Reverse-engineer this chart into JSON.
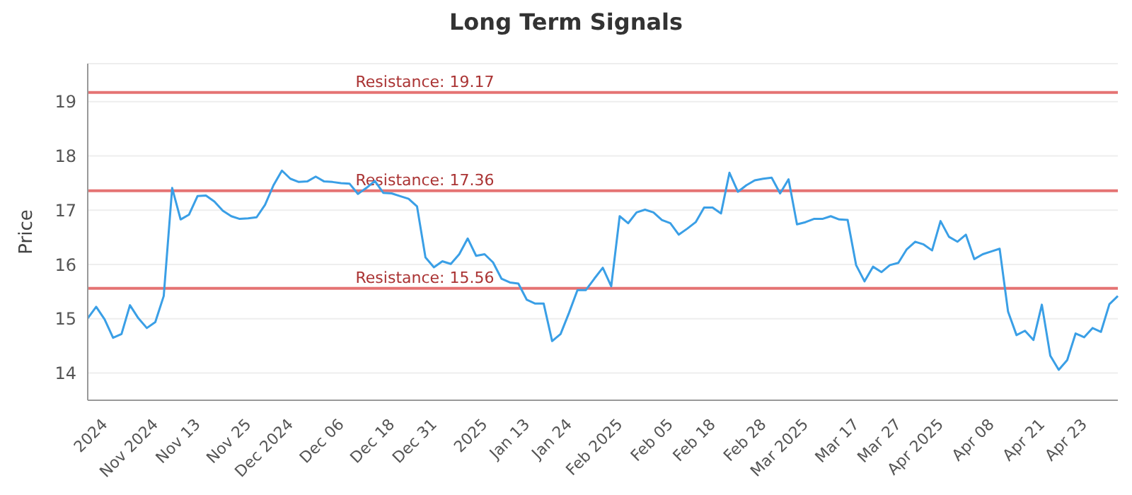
{
  "chart_data": {
    "type": "line",
    "title": "Long Term Signals",
    "ylabel": "Price",
    "categories": [
      null,
      null,
      "2024",
      null,
      null,
      null,
      null,
      null,
      "Nov 2024",
      null,
      null,
      null,
      null,
      "Nov 13",
      null,
      null,
      null,
      null,
      null,
      "Nov 25",
      null,
      null,
      null,
      null,
      "Dec 2024",
      null,
      null,
      null,
      null,
      null,
      "Dec 06",
      null,
      null,
      null,
      null,
      null,
      "Dec 18",
      null,
      null,
      null,
      null,
      "Dec 31",
      null,
      null,
      null,
      null,
      null,
      "2025",
      null,
      null,
      null,
      null,
      "Jan 13",
      null,
      null,
      null,
      null,
      "Jan 24",
      null,
      null,
      null,
      null,
      null,
      "Feb 2025",
      null,
      null,
      null,
      null,
      null,
      "Feb 05",
      null,
      null,
      null,
      null,
      "Feb 18",
      null,
      null,
      null,
      null,
      null,
      "Feb 28",
      null,
      null,
      null,
      null,
      "Mar 2025",
      null,
      null,
      null,
      null,
      null,
      "Mar 17",
      null,
      null,
      null,
      null,
      "Mar 27",
      null,
      null,
      null,
      null,
      "Apr 2025",
      null,
      null,
      null,
      null,
      null,
      "Apr 08",
      null,
      null,
      null,
      null,
      null,
      "Apr 21",
      null,
      null,
      null,
      null,
      "Apr 23",
      null,
      null,
      null,
      null
    ],
    "series": [
      {
        "color": "#3a9fe6",
        "values": [
          15.01,
          15.22,
          14.99,
          14.65,
          14.72,
          15.25,
          15.01,
          14.83,
          14.94,
          15.42,
          17.41,
          16.83,
          16.92,
          17.26,
          17.27,
          17.16,
          16.99,
          16.89,
          16.84,
          16.85,
          16.87,
          17.1,
          17.46,
          17.73,
          17.58,
          17.52,
          17.53,
          17.62,
          17.53,
          17.52,
          17.5,
          17.49,
          17.3,
          17.41,
          17.54,
          17.32,
          17.31,
          17.26,
          17.21,
          17.07,
          16.13,
          15.95,
          16.06,
          16.01,
          16.19,
          16.48,
          16.16,
          16.19,
          16.04,
          15.74,
          15.67,
          15.65,
          15.35,
          15.28,
          15.28,
          14.59,
          14.72,
          15.11,
          15.53,
          15.53,
          15.74,
          15.94,
          15.6,
          16.89,
          16.76,
          16.96,
          17.01,
          16.96,
          16.82,
          16.76,
          16.55,
          16.66,
          16.78,
          17.05,
          17.05,
          16.94,
          17.69,
          17.34,
          17.46,
          17.55,
          17.58,
          17.6,
          17.31,
          17.57,
          16.74,
          16.78,
          16.84,
          16.84,
          16.89,
          16.83,
          16.82,
          15.99,
          15.69,
          15.96,
          15.86,
          15.99,
          16.03,
          16.28,
          16.42,
          16.37,
          16.26,
          16.8,
          16.51,
          16.42,
          16.55,
          16.1,
          16.19,
          16.24,
          16.29,
          15.13,
          14.7,
          14.78,
          14.61,
          15.26,
          14.32,
          14.06,
          14.24,
          14.73,
          14.66,
          14.83,
          14.76,
          15.27,
          15.42
        ]
      }
    ],
    "ylim": [
      13.5,
      19.7
    ],
    "yticks": [
      14,
      15,
      16,
      17,
      18,
      19
    ],
    "grid": "y",
    "marker": "none",
    "line_style": "solid",
    "ref_lines": [
      {
        "axis": "y",
        "value": 19.17,
        "label": "Resistance: 19.17",
        "color": "#e57373"
      },
      {
        "axis": "y",
        "value": 17.36,
        "label": "Resistance: 17.36",
        "color": "#e57373"
      },
      {
        "axis": "y",
        "value": 15.56,
        "label": "Resistance: 15.56",
        "color": "#e57373"
      }
    ]
  }
}
